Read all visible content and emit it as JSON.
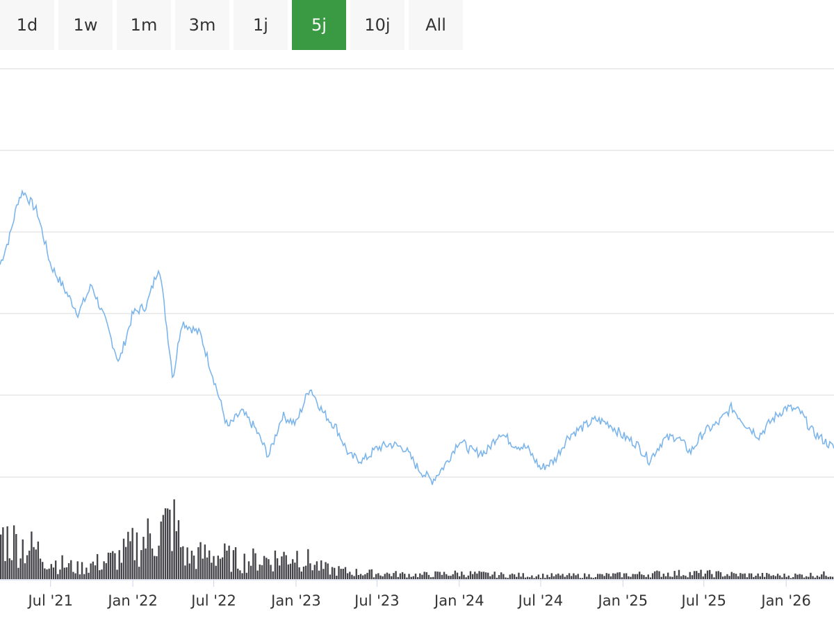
{
  "range_selector": {
    "buttons": [
      "1d",
      "1w",
      "1m",
      "3m",
      "1j",
      "5j",
      "10j",
      "All"
    ],
    "active": "5j"
  },
  "colors": {
    "price_line": "#7cb5ec",
    "volume_bars": "#434348",
    "active_button": "#3a9a43",
    "gridline": "#e6e6e6"
  },
  "chart_data": {
    "type": "line",
    "title": "",
    "xlabel": "",
    "ylabel": "",
    "x_range": [
      "2021-03-10",
      "2026-04-18"
    ],
    "x_ticks": [
      {
        "date": "2021-07-01",
        "label": "Jul '21"
      },
      {
        "date": "2022-01-01",
        "label": "Jan '22"
      },
      {
        "date": "2022-07-01",
        "label": "Jul '22"
      },
      {
        "date": "2023-01-01",
        "label": "Jan '23"
      },
      {
        "date": "2023-07-01",
        "label": "Jul '23"
      },
      {
        "date": "2024-01-01",
        "label": "Jan '24"
      },
      {
        "date": "2024-07-01",
        "label": "Jul '24"
      },
      {
        "date": "2025-01-01",
        "label": "Jan '25"
      },
      {
        "date": "2025-07-01",
        "label": "Jul '25"
      },
      {
        "date": "2026-01-01",
        "label": "Jan '26"
      }
    ],
    "price_axis_range": [
      0,
      5
    ],
    "price_gridlines": [
      1,
      2,
      3,
      4,
      5
    ],
    "volume_axis_range": [
      0,
      100
    ],
    "grid": true,
    "legend": "none",
    "price": [
      {
        "x": "2021-03-10",
        "y": 2.6
      },
      {
        "x": "2021-04-01",
        "y": 2.95
      },
      {
        "x": "2021-04-20",
        "y": 3.4
      },
      {
        "x": "2021-05-01",
        "y": 3.5
      },
      {
        "x": "2021-06-01",
        "y": 3.25
      },
      {
        "x": "2021-07-01",
        "y": 2.6
      },
      {
        "x": "2021-08-01",
        "y": 2.3
      },
      {
        "x": "2021-09-01",
        "y": 2.0
      },
      {
        "x": "2021-10-01",
        "y": 2.35
      },
      {
        "x": "2021-11-01",
        "y": 1.9
      },
      {
        "x": "2021-12-01",
        "y": 1.4
      },
      {
        "x": "2022-01-01",
        "y": 2.0
      },
      {
        "x": "2022-02-01",
        "y": 2.1
      },
      {
        "x": "2022-03-01",
        "y": 2.6
      },
      {
        "x": "2022-04-01",
        "y": 1.2
      },
      {
        "x": "2022-04-20",
        "y": 1.9
      },
      {
        "x": "2022-06-01",
        "y": 1.75
      },
      {
        "x": "2022-07-01",
        "y": 1.2
      },
      {
        "x": "2022-08-01",
        "y": 0.6
      },
      {
        "x": "2022-09-01",
        "y": 0.8
      },
      {
        "x": "2022-10-01",
        "y": 0.6
      },
      {
        "x": "2022-11-01",
        "y": 0.25
      },
      {
        "x": "2022-12-01",
        "y": 0.75
      },
      {
        "x": "2023-01-01",
        "y": 0.65
      },
      {
        "x": "2023-02-01",
        "y": 1.1
      },
      {
        "x": "2023-03-01",
        "y": 0.8
      },
      {
        "x": "2023-04-01",
        "y": 0.6
      },
      {
        "x": "2023-05-01",
        "y": 0.25
      },
      {
        "x": "2023-06-01",
        "y": 0.2
      },
      {
        "x": "2023-07-01",
        "y": 0.35
      },
      {
        "x": "2023-08-01",
        "y": 0.4
      },
      {
        "x": "2023-09-01",
        "y": 0.35
      },
      {
        "x": "2023-10-01",
        "y": 0.1
      },
      {
        "x": "2023-11-01",
        "y": -0.05
      },
      {
        "x": "2023-12-01",
        "y": 0.15
      },
      {
        "x": "2024-01-01",
        "y": 0.45
      },
      {
        "x": "2024-02-01",
        "y": 0.3
      },
      {
        "x": "2024-03-01",
        "y": 0.3
      },
      {
        "x": "2024-04-01",
        "y": 0.55
      },
      {
        "x": "2024-05-01",
        "y": 0.4
      },
      {
        "x": "2024-06-01",
        "y": 0.35
      },
      {
        "x": "2024-07-01",
        "y": 0.1
      },
      {
        "x": "2024-08-01",
        "y": 0.2
      },
      {
        "x": "2024-09-01",
        "y": 0.5
      },
      {
        "x": "2024-10-01",
        "y": 0.6
      },
      {
        "x": "2024-11-01",
        "y": 0.7
      },
      {
        "x": "2024-12-01",
        "y": 0.65
      },
      {
        "x": "2025-01-01",
        "y": 0.5
      },
      {
        "x": "2025-02-01",
        "y": 0.4
      },
      {
        "x": "2025-03-01",
        "y": 0.2
      },
      {
        "x": "2025-04-01",
        "y": 0.45
      },
      {
        "x": "2025-05-01",
        "y": 0.5
      },
      {
        "x": "2025-06-01",
        "y": 0.3
      },
      {
        "x": "2025-07-01",
        "y": 0.55
      },
      {
        "x": "2025-08-01",
        "y": 0.65
      },
      {
        "x": "2025-09-01",
        "y": 0.85
      },
      {
        "x": "2025-10-01",
        "y": 0.65
      },
      {
        "x": "2025-11-01",
        "y": 0.5
      },
      {
        "x": "2025-12-01",
        "y": 0.7
      },
      {
        "x": "2026-01-01",
        "y": 0.85
      },
      {
        "x": "2026-02-01",
        "y": 0.8
      },
      {
        "x": "2026-03-01",
        "y": 0.55
      },
      {
        "x": "2026-04-18",
        "y": 0.35
      }
    ],
    "volume": [
      {
        "x": "2021-03-10",
        "y": 60
      },
      {
        "x": "2021-06-01",
        "y": 40
      },
      {
        "x": "2021-07-01",
        "y": 25
      },
      {
        "x": "2021-09-01",
        "y": 15
      },
      {
        "x": "2021-12-01",
        "y": 30
      },
      {
        "x": "2022-01-01",
        "y": 45
      },
      {
        "x": "2022-03-01",
        "y": 65
      },
      {
        "x": "2022-04-01",
        "y": 80
      },
      {
        "x": "2022-05-01",
        "y": 30
      },
      {
        "x": "2022-07-01",
        "y": 35
      },
      {
        "x": "2022-09-01",
        "y": 25
      },
      {
        "x": "2022-12-01",
        "y": 30
      },
      {
        "x": "2023-01-01",
        "y": 35
      },
      {
        "x": "2023-03-01",
        "y": 15
      },
      {
        "x": "2023-05-01",
        "y": 10
      },
      {
        "x": "2023-07-01",
        "y": 8
      },
      {
        "x": "2023-10-01",
        "y": 6
      },
      {
        "x": "2024-01-01",
        "y": 8
      },
      {
        "x": "2024-04-01",
        "y": 6
      },
      {
        "x": "2024-07-01",
        "y": 5
      },
      {
        "x": "2024-10-01",
        "y": 5
      },
      {
        "x": "2025-01-01",
        "y": 6
      },
      {
        "x": "2025-04-01",
        "y": 8
      },
      {
        "x": "2025-07-01",
        "y": 8
      },
      {
        "x": "2025-10-01",
        "y": 6
      },
      {
        "x": "2026-01-01",
        "y": 5
      },
      {
        "x": "2026-04-18",
        "y": 7
      }
    ]
  }
}
